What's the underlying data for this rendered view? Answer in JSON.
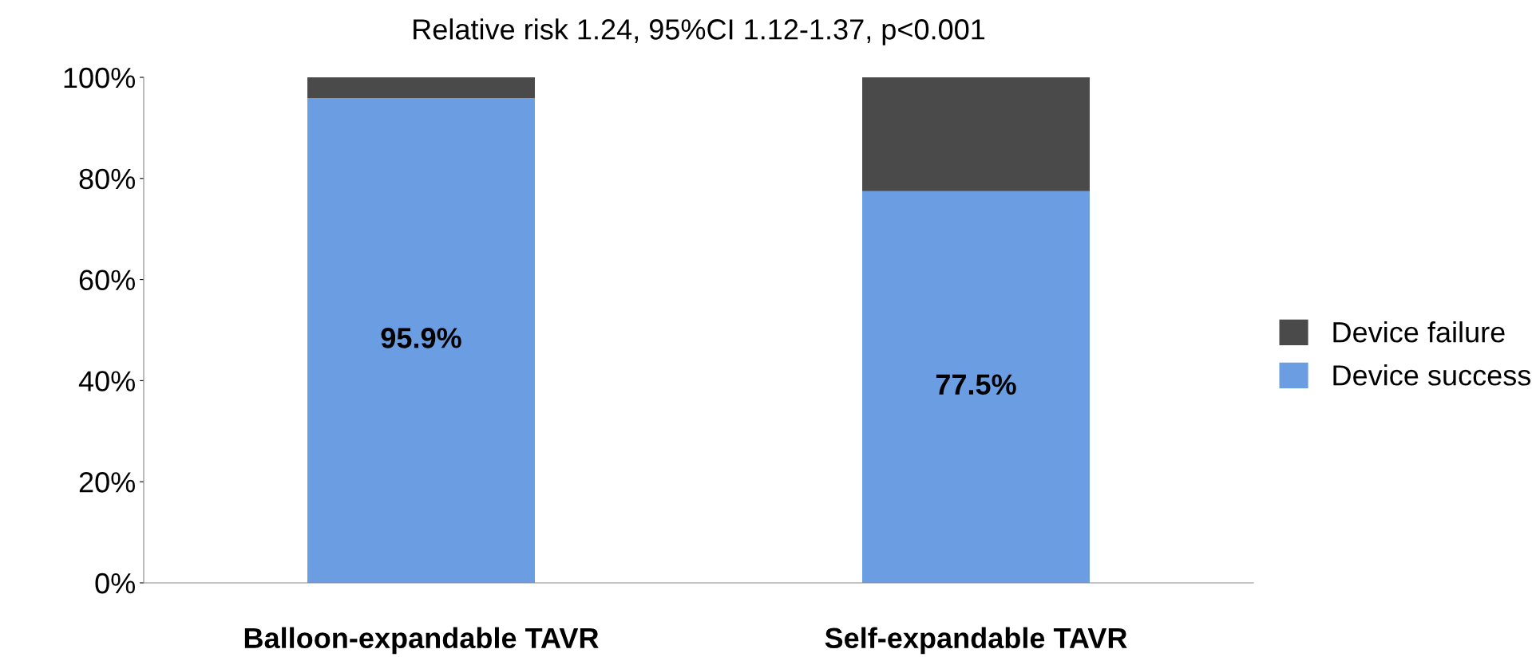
{
  "chart_data": {
    "type": "bar",
    "stacked": true,
    "title": "Relative risk 1.24, 95%CI 1.12-1.37, p<0.001",
    "categories": [
      "Balloon-expandable TAVR",
      "Self-expandable TAVR"
    ],
    "series": [
      {
        "name": "Device success",
        "color": "#6a9de2",
        "values": [
          95.9,
          77.5
        ],
        "value_labels": [
          "95.9%",
          "77.5%"
        ]
      },
      {
        "name": "Device failure",
        "color": "#4a4a4a",
        "values": [
          4.1,
          22.5
        ]
      }
    ],
    "ylim": [
      0,
      100
    ],
    "yticks": [
      {
        "value": 0,
        "label": "0%"
      },
      {
        "value": 20,
        "label": "20%"
      },
      {
        "value": 40,
        "label": "40%"
      },
      {
        "value": 60,
        "label": "60%"
      },
      {
        "value": 80,
        "label": "80%"
      },
      {
        "value": 100,
        "label": "100%"
      }
    ],
    "grid": false,
    "legend": "right"
  }
}
